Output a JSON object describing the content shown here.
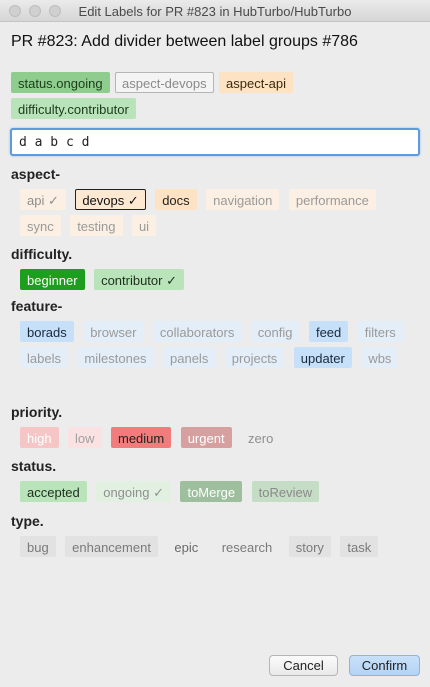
{
  "window": {
    "title": "Edit Labels for PR #823 in HubTurbo/HubTurbo"
  },
  "pr_title": "PR #823: Add divider between label groups #786",
  "selected_labels": [
    {
      "text": "status.ongoing",
      "bg": "#8fcd8f",
      "fg": "#1b3d1b",
      "border": "#8fcd8f"
    },
    {
      "text": "aspect-devops",
      "bg": "#f4f4f4",
      "fg": "#8a8a8a",
      "border": "#b5b5b5"
    },
    {
      "text": "aspect-api",
      "bg": "#fde2c3",
      "fg": "#3a2a10",
      "border": "#fde2c3"
    },
    {
      "text": "difficulty.contributor",
      "bg": "#b9e4b9",
      "fg": "#1e3a1e",
      "border": "#b9e4b9"
    }
  ],
  "query_input": {
    "value": "d a b c d"
  },
  "groups": [
    {
      "name": "aspect-",
      "labels": [
        {
          "text": "api ✓",
          "bg": "#fbf0e3",
          "fg": "#8f8f8f",
          "border": "#fbf0e3"
        },
        {
          "text": "devops ✓",
          "bg": "#fde8d2",
          "fg": "#111",
          "border": "#222"
        },
        {
          "text": "docs",
          "bg": "#fde2c3",
          "fg": "#222",
          "border": "#fde2c3"
        },
        {
          "text": "navigation",
          "bg": "#fbf0e3",
          "fg": "#9a9a9a",
          "border": "#fbf0e3"
        },
        {
          "text": "performance",
          "bg": "#fbf0e3",
          "fg": "#9a9a9a",
          "border": "#fbf0e3"
        },
        {
          "text": "sync",
          "bg": "#fbf0e3",
          "fg": "#9a9a9a",
          "border": "#fbf0e3"
        },
        {
          "text": "testing",
          "bg": "#fbf0e3",
          "fg": "#9a9a9a",
          "border": "#fbf0e3"
        },
        {
          "text": "ui",
          "bg": "#fbf0e3",
          "fg": "#9a9a9a",
          "border": "#fbf0e3"
        }
      ]
    },
    {
      "name": "difficulty.",
      "labels": [
        {
          "text": "beginner",
          "bg": "#1e9e1e",
          "fg": "#ffffff",
          "border": "#1e9e1e"
        },
        {
          "text": "contributor ✓",
          "bg": "#b9e4b9",
          "fg": "#1e2e1e",
          "border": "#b9e4b9"
        }
      ]
    },
    {
      "name": "feature-",
      "labels": [
        {
          "text": "borads",
          "bg": "#c6e0fa",
          "fg": "#1a2a3a",
          "border": "#c6e0fa"
        },
        {
          "text": "browser",
          "bg": "#e4eef8",
          "fg": "#9a9a9a",
          "border": "#e4eef8"
        },
        {
          "text": "collaborators",
          "bg": "#e4eef8",
          "fg": "#9a9a9a",
          "border": "#e4eef8"
        },
        {
          "text": "config",
          "bg": "#e4eef8",
          "fg": "#9a9a9a",
          "border": "#e4eef8"
        },
        {
          "text": "feed",
          "bg": "#c6e0fa",
          "fg": "#1a2a3a",
          "border": "#c6e0fa"
        },
        {
          "text": "filters",
          "bg": "#e4eef8",
          "fg": "#9a9a9a",
          "border": "#e4eef8"
        },
        {
          "text": "labels",
          "bg": "#e4eef8",
          "fg": "#9a9a9a",
          "border": "#e4eef8"
        },
        {
          "text": "milestones",
          "bg": "#e4eef8",
          "fg": "#9a9a9a",
          "border": "#e4eef8"
        },
        {
          "text": "panels",
          "bg": "#e4eef8",
          "fg": "#9a9a9a",
          "border": "#e4eef8"
        },
        {
          "text": "projects",
          "bg": "#e4eef8",
          "fg": "#9a9a9a",
          "border": "#e4eef8"
        },
        {
          "text": "updater",
          "bg": "#c6e0fa",
          "fg": "#1a2a3a",
          "border": "#c6e0fa"
        },
        {
          "text": "wbs",
          "bg": "#e4eef8",
          "fg": "#9a9a9a",
          "border": "#e4eef8"
        }
      ]
    },
    {
      "name": "priority.",
      "labels": [
        {
          "text": "high",
          "bg": "#f6c6c6",
          "fg": "#ffffff",
          "border": "#f6c6c6"
        },
        {
          "text": "low",
          "bg": "#fbe2e2",
          "fg": "#a0a0a0",
          "border": "#fbe2e2"
        },
        {
          "text": "medium",
          "bg": "#f27b7b",
          "fg": "#222",
          "border": "#f27b7b"
        },
        {
          "text": "urgent",
          "bg": "#d7a0a0",
          "fg": "#ffffff",
          "border": "#d7a0a0"
        },
        {
          "text": "zero",
          "bg": "#ececec",
          "fg": "#8f8f8f",
          "border": "#ececec"
        }
      ]
    },
    {
      "name": "status.",
      "labels": [
        {
          "text": "accepted",
          "bg": "#b9e4b9",
          "fg": "#1e2e1e",
          "border": "#b9e4b9"
        },
        {
          "text": "ongoing ✓",
          "bg": "#e2f0e2",
          "fg": "#8f8f8f",
          "border": "#e2f0e2"
        },
        {
          "text": "toMerge",
          "bg": "#9dbf9d",
          "fg": "#ffffff",
          "border": "#9dbf9d"
        },
        {
          "text": "toReview",
          "bg": "#c5dcc5",
          "fg": "#8a8a8a",
          "border": "#c5dcc5"
        }
      ]
    },
    {
      "name": "type.",
      "labels": [
        {
          "text": "bug",
          "bg": "#e2e2e2",
          "fg": "#7a7a7a",
          "border": "#e2e2e2"
        },
        {
          "text": "enhancement",
          "bg": "#e2e2e2",
          "fg": "#7a7a7a",
          "border": "#e2e2e2"
        },
        {
          "text": "epic",
          "bg": "#ececec",
          "fg": "#6a6a6a",
          "border": "#ececec"
        },
        {
          "text": "research",
          "bg": "#ececec",
          "fg": "#7a7a7a",
          "border": "#ececec"
        },
        {
          "text": "story",
          "bg": "#e2e2e2",
          "fg": "#7a7a7a",
          "border": "#e2e2e2"
        },
        {
          "text": "task",
          "bg": "#e2e2e2",
          "fg": "#7a7a7a",
          "border": "#e2e2e2"
        }
      ]
    }
  ],
  "buttons": {
    "cancel": "Cancel",
    "confirm": "Confirm"
  }
}
